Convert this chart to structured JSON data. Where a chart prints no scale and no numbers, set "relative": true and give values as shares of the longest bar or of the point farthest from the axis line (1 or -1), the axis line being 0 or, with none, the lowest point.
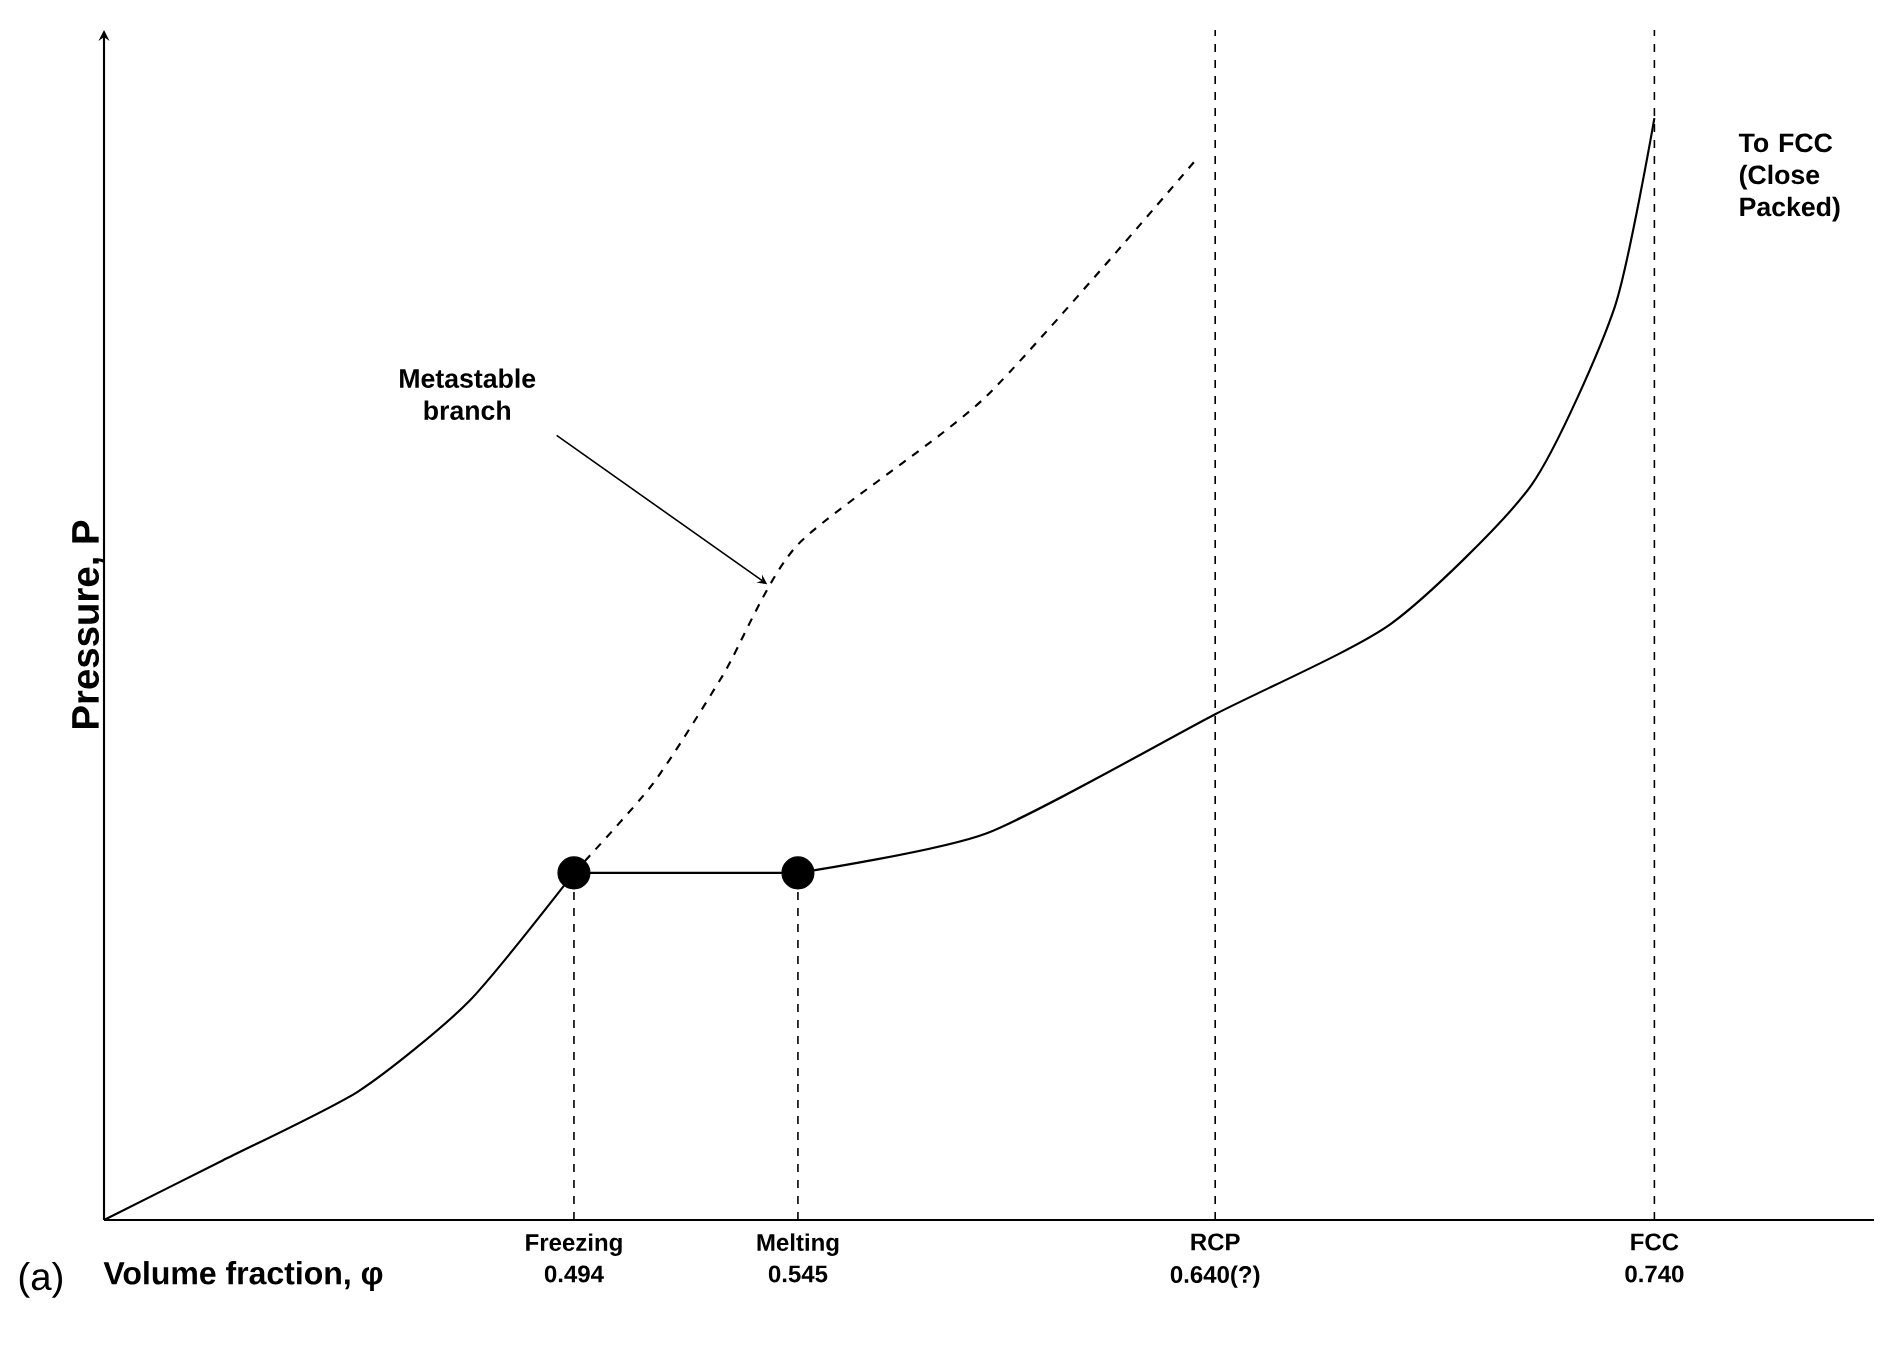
{
  "chart_data": {
    "type": "line",
    "relative": true,
    "xlabel": "Volume fraction,  φ",
    "ylabel": "Pressure, P",
    "tick_labels": "x",
    "xlim": [
      0.387,
      0.79
    ],
    "xticks": [
      0.494,
      0.545,
      {
        "value": 0.64,
        "label": "0.640(?)"
      },
      {
        "value": 0.74,
        "label": "0.740"
      }
    ],
    "series": [
      {
        "color": "#000000",
        "x": [
          0.387,
          0.414,
          0.445,
          0.47,
          0.494
        ],
        "values": [
          0,
          0.054,
          0.117,
          0.198,
          0.315
        ]
      },
      {
        "color": "#000000",
        "x": [
          0.494,
          0.545
        ],
        "values": [
          0.315,
          0.315
        ]
      },
      {
        "color": "#000000",
        "x": [
          0.545,
          0.588,
          0.64,
          0.68,
          0.712,
          0.731,
          0.74
        ],
        "values": [
          0.315,
          0.351,
          0.459,
          0.541,
          0.667,
          0.829,
          1.0
        ]
      },
      {
        "color": "#000000",
        "line_style": "dashed",
        "x": [
          0.494,
          0.512,
          0.528,
          0.545,
          0.588,
          0.636
        ],
        "values": [
          0.315,
          0.396,
          0.495,
          0.613,
          0.748,
          0.964
        ]
      },
      {
        "type": "scatter",
        "color": "#000000",
        "marker": "circle",
        "x": [
          0.494,
          0.545
        ],
        "values": [
          0.315,
          0.315
        ]
      }
    ],
    "ref_lines": [
      {
        "axis": "x",
        "value": 0.494,
        "line_style": "dashed",
        "label": "Freezing"
      },
      {
        "axis": "x",
        "value": 0.545,
        "line_style": "dashed",
        "label": "Melting"
      },
      {
        "axis": "x",
        "value": 0.64,
        "line_style": "dashed",
        "label": "RCP"
      },
      {
        "axis": "x",
        "value": 0.74,
        "line_style": "dashed",
        "label": "FCC"
      }
    ],
    "annotations": [
      {
        "text": "Metastable branch",
        "x": 0.538,
        "y": 0.577
      },
      "To FCC (Close Packed)",
      "(a)"
    ]
  }
}
